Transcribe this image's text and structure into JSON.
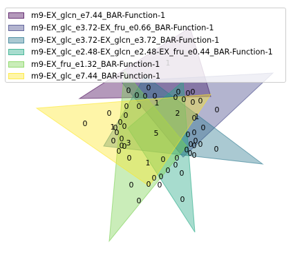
{
  "chart_data": {
    "type": "venn",
    "title": "",
    "sets": [
      {
        "name": "m9-EX_glcn_e7.44_BAR-Function-1",
        "color": "#440154"
      },
      {
        "name": "m9-EX_glc_e3.72-EX_fru_e0.66_BAR-Function-1",
        "color": "#414487"
      },
      {
        "name": "m9-EX_glc_e3.72-EX_glcn_e3.72_BAR-Function-1",
        "color": "#2a788e"
      },
      {
        "name": "m9-EX_glc_e2.48-EX_glcn_e2.48-EX_fru_e0.44_BAR-Function-1",
        "color": "#22a884"
      },
      {
        "name": "m9-EX_fru_e1.32_BAR-Function-1",
        "color": "#7ad151"
      },
      {
        "name": "m9-EX_glc_e7.44_BAR-Function-1",
        "color": "#fde725"
      }
    ],
    "region_labels": [
      {
        "text": "0"
      },
      {
        "text": "1"
      },
      {
        "text": "0"
      },
      {
        "text": "0"
      },
      {
        "text": "0"
      },
      {
        "text": "0"
      },
      {
        "text": "0"
      },
      {
        "text": "0"
      },
      {
        "text": "0"
      },
      {
        "text": "0"
      },
      {
        "text": "0"
      },
      {
        "text": "0"
      },
      {
        "text": "0"
      },
      {
        "text": "0"
      },
      {
        "text": "0"
      },
      {
        "text": "1"
      },
      {
        "text": "2"
      },
      {
        "text": "0"
      },
      {
        "text": "0"
      },
      {
        "text": "0"
      },
      {
        "text": "0"
      },
      {
        "text": "0"
      },
      {
        "text": "0"
      },
      {
        "text": "1"
      },
      {
        "text": "1"
      },
      {
        "text": "0"
      },
      {
        "text": "0"
      },
      {
        "text": "0"
      },
      {
        "text": "0"
      },
      {
        "text": "0"
      },
      {
        "text": "0"
      },
      {
        "text": "5"
      },
      {
        "text": "0"
      },
      {
        "text": "0"
      },
      {
        "text": "0"
      },
      {
        "text": "3"
      },
      {
        "text": "0"
      },
      {
        "text": "0"
      },
      {
        "text": "0"
      },
      {
        "text": "0"
      },
      {
        "text": "0"
      },
      {
        "text": "0"
      },
      {
        "text": "0"
      },
      {
        "text": "0"
      },
      {
        "text": "0"
      },
      {
        "text": "1"
      },
      {
        "text": "0"
      },
      {
        "text": "0"
      },
      {
        "text": "0"
      },
      {
        "text": "0"
      },
      {
        "text": "0"
      },
      {
        "text": "0"
      },
      {
        "text": "0"
      },
      {
        "text": "0"
      },
      {
        "text": "0"
      },
      {
        "text": "0"
      },
      {
        "text": "0"
      },
      {
        "text": "0"
      },
      {
        "text": "0"
      },
      {
        "text": "0"
      }
    ],
    "legend_position": "top-left",
    "grid": false
  }
}
